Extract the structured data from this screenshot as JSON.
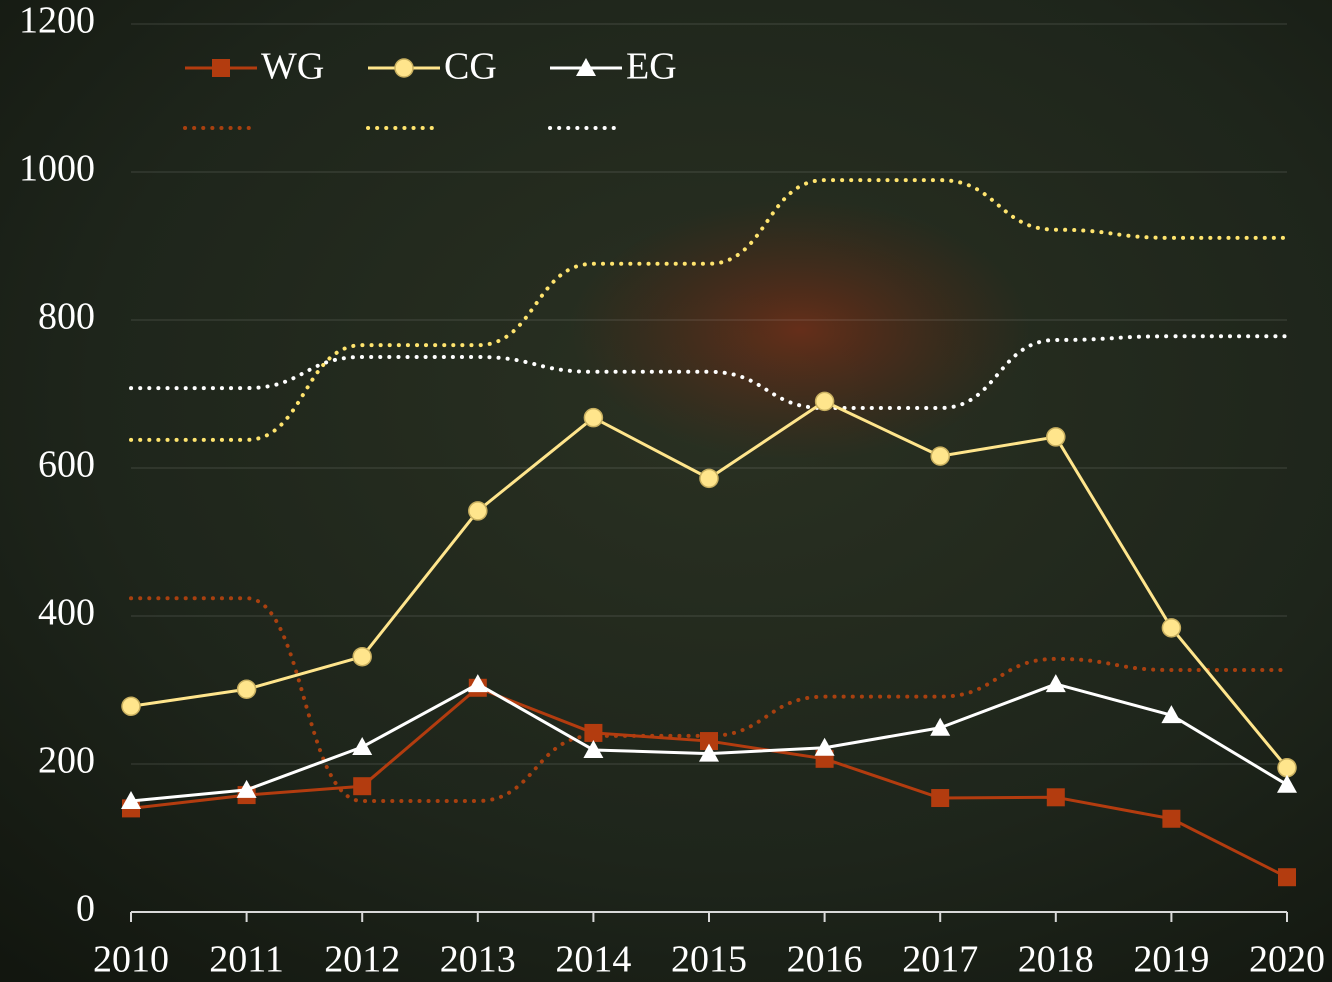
{
  "chart_data": {
    "type": "line",
    "categories": [
      "2010",
      "2011",
      "2012",
      "2013",
      "2014",
      "2015",
      "2016",
      "2017",
      "2018",
      "2019",
      "2020"
    ],
    "series": [
      {
        "name": "WG",
        "color": "#b33c0f",
        "marker": "square",
        "values": [
          140,
          158,
          170,
          303,
          242,
          231,
          207,
          154,
          155,
          126,
          47
        ]
      },
      {
        "name": "CG",
        "color": "#ffe58c",
        "marker": "circle",
        "values": [
          278,
          301,
          345,
          542,
          668,
          586,
          690,
          616,
          642,
          384,
          195
        ]
      },
      {
        "name": "EG",
        "color": "#ffffff",
        "marker": "triangle",
        "values": [
          150,
          165,
          223,
          308,
          219,
          214,
          222,
          249,
          308,
          266,
          172
        ]
      },
      {
        "color": "#a8400f",
        "style": "dotted",
        "values": [
          424,
          424,
          150,
          150,
          238,
          238,
          291,
          291,
          342,
          327,
          327
        ]
      },
      {
        "color": "#ffe46e",
        "style": "dotted",
        "values": [
          638,
          638,
          766,
          766,
          876,
          876,
          989,
          989,
          922,
          911,
          911
        ]
      },
      {
        "color": "#ffffff",
        "style": "dotted",
        "values": [
          708,
          708,
          750,
          750,
          730,
          730,
          681,
          681,
          773,
          778,
          778
        ]
      }
    ],
    "ylim": [
      0,
      1200
    ],
    "yticks": [
      0,
      200,
      400,
      600,
      800,
      1000,
      1200
    ],
    "grid": true,
    "legend": "top-left"
  }
}
